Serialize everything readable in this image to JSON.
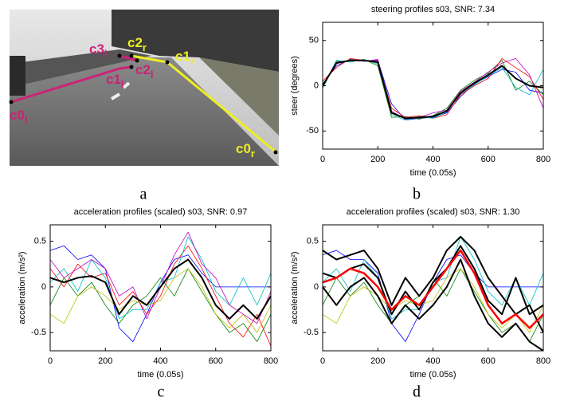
{
  "panel_labels": [
    "a",
    "b",
    "c",
    "d"
  ],
  "photo_labels": [
    {
      "base": "c0",
      "sub": "l"
    },
    {
      "base": "c1",
      "sub": "l"
    },
    {
      "base": "c2",
      "sub": "l"
    },
    {
      "base": "c3",
      "sub": "l"
    },
    {
      "base": "c0",
      "sub": "r"
    },
    {
      "base": "c1",
      "sub": "r"
    },
    {
      "base": "c2",
      "sub": "r"
    }
  ],
  "chart_data": [
    {
      "type": "line",
      "title": "steering profiles s03, SNR: 7.34",
      "xlabel": "time (0.05s)",
      "ylabel": "steer (degrees)",
      "x": [
        0,
        50,
        100,
        150,
        200,
        250,
        300,
        350,
        400,
        450,
        500,
        550,
        600,
        650,
        700,
        750,
        800
      ],
      "xlim": [
        0,
        800
      ],
      "xticks": [
        0,
        200,
        400,
        600,
        800
      ],
      "ylim": [
        -70,
        70
      ],
      "yticks": [
        -50,
        0,
        50
      ],
      "grid": false,
      "series": [
        {
          "color": "#0000ff",
          "linewidth": 0.8,
          "values": [
            2,
            22,
            29,
            27,
            28,
            -20,
            -38,
            -36,
            -35,
            -30,
            -12,
            2,
            10,
            18,
            15,
            -5,
            -8
          ]
        },
        {
          "color": "#008000",
          "linewidth": 0.8,
          "values": [
            -3,
            27,
            27,
            29,
            22,
            -35,
            -34,
            -37,
            -33,
            -25,
            -5,
            6,
            14,
            28,
            -5,
            5,
            -10
          ]
        },
        {
          "color": "#ff0000",
          "linewidth": 0.8,
          "values": [
            5,
            20,
            30,
            28,
            27,
            -25,
            -35,
            -33,
            -36,
            -32,
            -10,
            0,
            8,
            30,
            20,
            10,
            -15
          ]
        },
        {
          "color": "#bf00bf",
          "linewidth": 0.8,
          "values": [
            0,
            26,
            28,
            27,
            29,
            -28,
            -37,
            -35,
            -30,
            -27,
            -6,
            4,
            15,
            25,
            30,
            12,
            -25
          ]
        },
        {
          "color": "#00bfbf",
          "linewidth": 0.8,
          "values": [
            -2,
            28,
            26,
            29,
            24,
            -32,
            -38,
            -34,
            -36,
            -29,
            -9,
            1,
            11,
            20,
            -2,
            -10,
            18
          ]
        },
        {
          "color": "#000000",
          "linewidth": 2,
          "values": [
            0,
            25,
            28,
            28,
            26,
            -30,
            -36,
            -35,
            -34,
            -28,
            -8,
            3,
            12,
            22,
            8,
            0,
            -2
          ]
        }
      ]
    },
    {
      "type": "line",
      "title": "acceleration profiles (scaled) s03, SNR: 0.97",
      "xlabel": "time (0.05s)",
      "ylabel": "acceleration (m/s²)",
      "x": [
        0,
        50,
        100,
        150,
        200,
        250,
        300,
        350,
        400,
        450,
        500,
        550,
        600,
        650,
        700,
        750,
        800
      ],
      "xlim": [
        0,
        800
      ],
      "xticks": [
        0,
        200,
        400,
        600,
        800
      ],
      "ylim": [
        -0.7,
        0.68
      ],
      "yticks": [
        -0.5,
        0,
        0.5
      ],
      "grid": false,
      "series": [
        {
          "color": "#0000ff",
          "linewidth": 0.8,
          "values": [
            0.4,
            0.45,
            0.3,
            0.35,
            0.2,
            -0.45,
            -0.6,
            -0.3,
            0.05,
            0.3,
            0.35,
            0.15,
            0,
            0,
            0,
            0,
            0
          ]
        },
        {
          "color": "#008000",
          "linewidth": 0.8,
          "values": [
            -0.2,
            0.1,
            -0.1,
            0.05,
            -0.2,
            -0.4,
            -0.2,
            -0.1,
            0.1,
            -0.1,
            0.2,
            -0.05,
            -0.3,
            -0.5,
            -0.4,
            -0.6,
            -0.3
          ]
        },
        {
          "color": "#ff0000",
          "linewidth": 0.8,
          "values": [
            0.2,
            0.0,
            0.25,
            0.1,
            0.15,
            -0.2,
            -0.05,
            -0.3,
            -0.1,
            0.25,
            0.45,
            0.2,
            -0.1,
            -0.4,
            -0.55,
            -0.3,
            -0.65
          ]
        },
        {
          "color": "#00bfbf",
          "linewidth": 0.8,
          "values": [
            0.05,
            0.2,
            -0.05,
            0.3,
            0.1,
            -0.35,
            -0.25,
            -0.25,
            0.05,
            0.1,
            0.55,
            0.3,
            -0.05,
            -0.2,
            0.1,
            -0.2,
            0.15
          ]
        },
        {
          "color": "#bfbf00",
          "linewidth": 0.8,
          "values": [
            -0.3,
            -0.4,
            -0.1,
            0.0,
            -0.1,
            -0.25,
            -0.15,
            -0.2,
            -0.15,
            0.1,
            0.2,
            0.0,
            -0.3,
            -0.45,
            -0.3,
            -0.5,
            -0.2
          ]
        },
        {
          "color": "#bf00bf",
          "linewidth": 0.8,
          "values": [
            0.3,
            0.1,
            0.2,
            0.3,
            0.2,
            -0.1,
            0.0,
            -0.35,
            0.0,
            0.35,
            0.6,
            0.25,
            0.1,
            -0.2,
            -0.3,
            -0.4,
            -0.05
          ]
        },
        {
          "color": "#000000",
          "linewidth": 2,
          "values": [
            0.1,
            0.05,
            0.1,
            0.12,
            0.05,
            -0.3,
            -0.1,
            -0.2,
            0.0,
            0.2,
            0.3,
            0.1,
            -0.2,
            -0.35,
            -0.2,
            -0.35,
            -0.1
          ]
        }
      ]
    },
    {
      "type": "line",
      "title": "acceleration profiles (scaled) s03, SNR: 1.30",
      "xlabel": "time (0.05s)",
      "ylabel": "acceleration (m/s²)",
      "x": [
        0,
        50,
        100,
        150,
        200,
        250,
        300,
        350,
        400,
        450,
        500,
        550,
        600,
        650,
        700,
        750,
        800
      ],
      "xlim": [
        0,
        800
      ],
      "xticks": [
        0,
        200,
        400,
        600,
        800
      ],
      "ylim": [
        -0.7,
        0.68
      ],
      "yticks": [
        -0.5,
        0,
        0.5
      ],
      "grid": false,
      "series": [
        {
          "color": "#0000ff",
          "linewidth": 0.8,
          "values": [
            0.35,
            0.4,
            0.3,
            0.3,
            0.15,
            -0.4,
            -0.6,
            -0.3,
            0.05,
            0.3,
            0.35,
            0.15,
            0,
            0,
            0,
            0,
            0
          ]
        },
        {
          "color": "#008000",
          "linewidth": 0.8,
          "values": [
            -0.2,
            0.1,
            -0.1,
            0.05,
            -0.2,
            -0.4,
            -0.2,
            -0.1,
            0.1,
            -0.1,
            0.2,
            -0.05,
            -0.3,
            -0.5,
            -0.4,
            -0.6,
            -0.3
          ]
        },
        {
          "color": "#00bfbf",
          "linewidth": 0.8,
          "values": [
            0.05,
            0.2,
            -0.05,
            0.3,
            0.1,
            -0.35,
            -0.25,
            -0.25,
            0.05,
            0.1,
            0.55,
            0.3,
            -0.05,
            -0.2,
            0.1,
            -0.2,
            0.15
          ]
        },
        {
          "color": "#bfbf00",
          "linewidth": 0.8,
          "values": [
            -0.3,
            -0.4,
            -0.1,
            0.0,
            -0.1,
            -0.25,
            -0.15,
            -0.2,
            -0.15,
            0.1,
            0.2,
            0.0,
            -0.3,
            -0.45,
            -0.3,
            -0.5,
            -0.2
          ]
        },
        {
          "color": "#000000",
          "linewidth": 2,
          "values": [
            0.4,
            0.3,
            0.35,
            0.4,
            0.2,
            -0.2,
            0.1,
            -0.1,
            0.1,
            0.4,
            0.55,
            0.4,
            0.1,
            -0.1,
            -0.3,
            -0.2,
            -0.5
          ]
        },
        {
          "color": "#000000",
          "linewidth": 2,
          "values": [
            0.0,
            -0.2,
            0.0,
            0.1,
            -0.1,
            -0.4,
            -0.2,
            -0.35,
            -0.2,
            0.0,
            0.3,
            -0.1,
            -0.4,
            -0.55,
            -0.4,
            -0.6,
            -0.7
          ]
        },
        {
          "color": "#000000",
          "linewidth": 2,
          "values": [
            0.15,
            0.1,
            0.2,
            0.25,
            0.1,
            -0.3,
            -0.05,
            -0.25,
            0.05,
            0.2,
            0.45,
            0.2,
            -0.15,
            -0.3,
            0.1,
            -0.3,
            -0.2
          ]
        },
        {
          "color": "#ff0000",
          "linewidth": 2.5,
          "values": [
            0.05,
            0.1,
            0.2,
            0.15,
            0.0,
            -0.25,
            -0.1,
            -0.2,
            0.0,
            0.2,
            0.4,
            0.15,
            -0.2,
            -0.4,
            -0.3,
            -0.45,
            -0.3
          ]
        }
      ]
    }
  ]
}
